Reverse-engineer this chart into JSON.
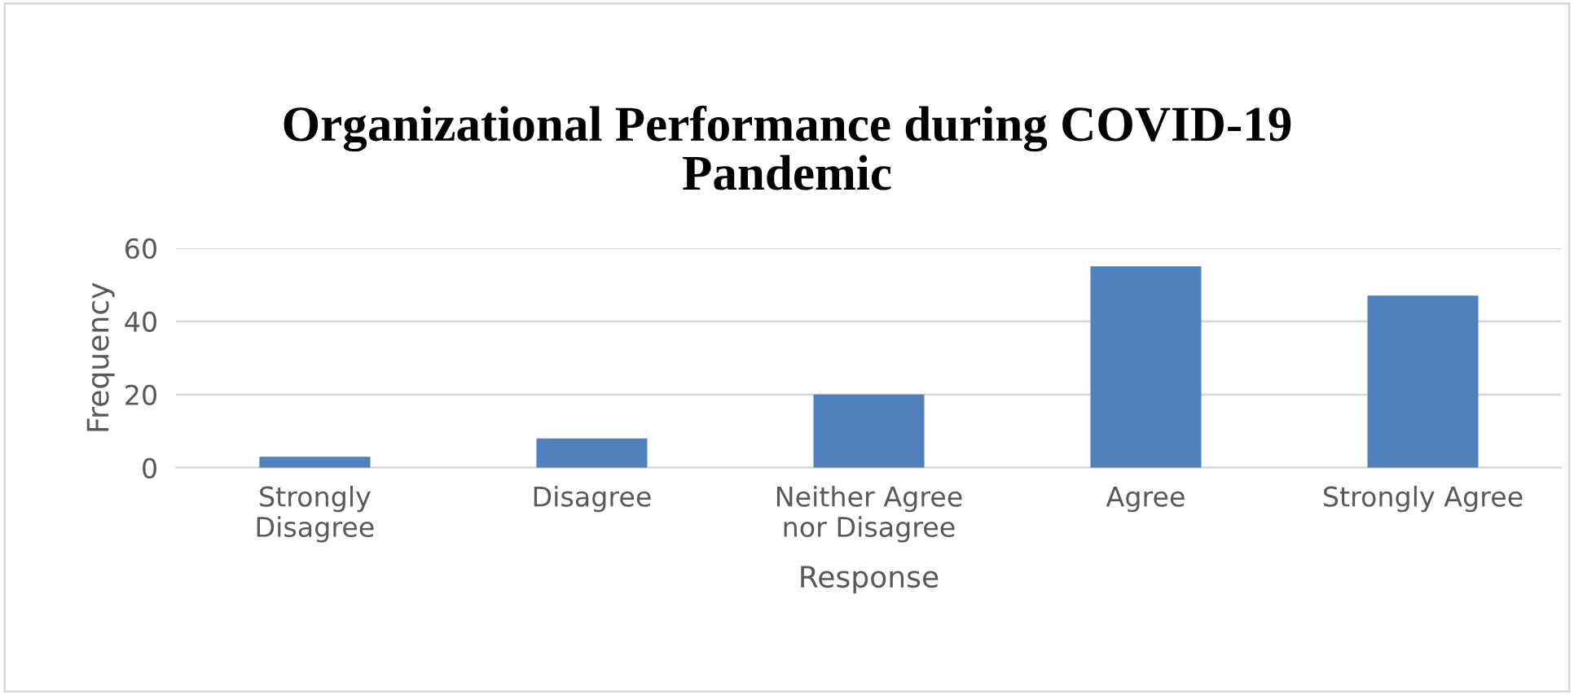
{
  "chart_data": {
    "type": "bar",
    "title": "Organizational Performance during COVID-19\nPandemic",
    "xlabel": "Response",
    "ylabel": "Frequency",
    "categories": [
      "Strongly\nDisagree",
      "Disagree",
      "Neither Agree\nnor Disagree",
      "Agree",
      "Strongly Agree"
    ],
    "values": [
      3,
      8,
      20,
      55,
      47
    ],
    "color": "#4f81bd",
    "ylim": [
      0,
      60
    ],
    "yticks": [
      0,
      20,
      40,
      60
    ],
    "grid": "y"
  }
}
